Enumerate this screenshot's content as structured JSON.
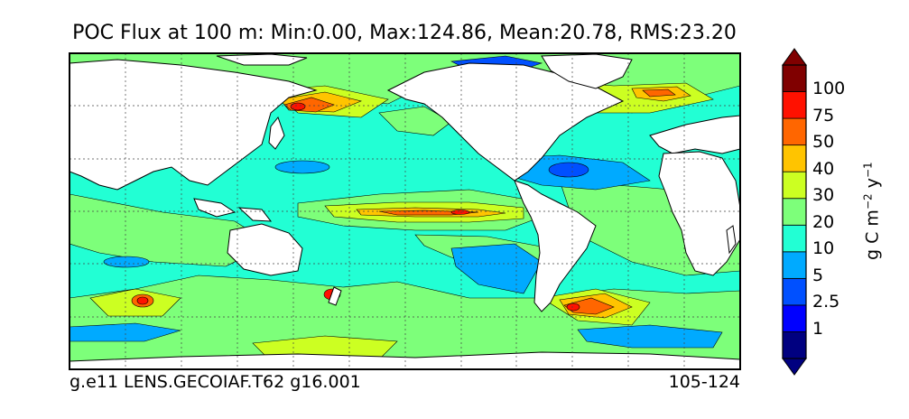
{
  "title": "POC Flux at 100 m: Min:0.00, Max:124.86, Mean:20.78, RMS:23.20",
  "footer": {
    "case_name": "g.e11 LENS.GECOIAF.T62 g16.001",
    "years": "105-124"
  },
  "colorbar": {
    "units_base": "g C m",
    "units_exp1": "−2",
    "units_mid": " y",
    "units_exp2": "−1",
    "labels": [
      "100",
      "75",
      "50",
      "40",
      "30",
      "20",
      "10",
      "5",
      "2.5",
      "1"
    ],
    "colors": [
      "#000080",
      "#0000ff",
      "#0050ff",
      "#00aaff",
      "#22ffd4",
      "#7dff7a",
      "#ccff22",
      "#ffc400",
      "#ff6600",
      "#ff1100",
      "#800000"
    ]
  },
  "map": {
    "land_color": "#ffffff",
    "ocean_background": "#22ffd4",
    "gridlines": true
  }
}
